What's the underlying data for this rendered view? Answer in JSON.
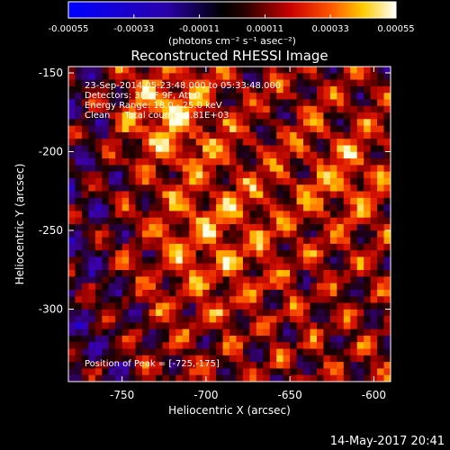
{
  "chart_data": {
    "type": "heatmap",
    "title": "Reconstructed RHESSI Image",
    "xlabel": "Heliocentric X (arcsec)",
    "ylabel": "Heliocentric Y (arcsec)",
    "x_ticks": [
      "-750",
      "-700",
      "-650",
      "-600"
    ],
    "x_tick_values": [
      -750,
      -700,
      -650,
      -600
    ],
    "y_ticks": [
      "-150",
      "-200",
      "-250",
      "-300"
    ],
    "y_tick_values": [
      -150,
      -200,
      -250,
      -300
    ],
    "xlim": [
      -782,
      -590
    ],
    "ylim": [
      -346,
      -146
    ],
    "colorbar": {
      "tick_labels": [
        "-0.00055",
        "-0.00033",
        "-0.00011",
        "0.00011",
        "0.00033",
        "0.00055"
      ],
      "range": [
        -0.00055,
        0.00055
      ],
      "unit_label": "(photons cm⁻² s⁻¹ asec⁻²)"
    },
    "info_lines": [
      "23-Sep-2014 05:23:48.000 to 05:33:48.000",
      "Detectors: 3F 6F 9F, Att 0",
      "Energy Range: 18.0 - 25.0 keV",
      "Clean     Total counts: 3.81E+03"
    ],
    "peak_label": "Position of Peak = [-725,-175]",
    "peak_position": [
      -725,
      -175
    ],
    "colors": {
      "low": "#0000ff",
      "zero": "#000000",
      "mid": "#cc0000",
      "high": "#ffff00",
      "top": "#ffffff"
    }
  },
  "footer": {
    "timestamp": "14-May-2017 20:41"
  }
}
